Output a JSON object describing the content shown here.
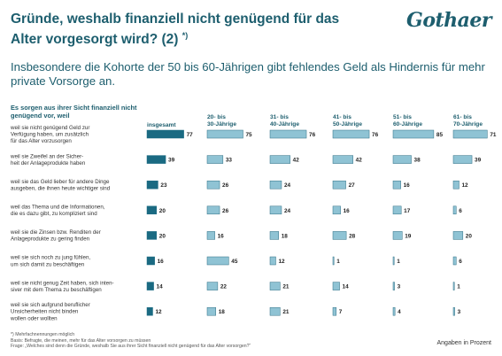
{
  "title": "Gründe, weshalb finanziell nicht genügend für das Alter vorgesorgt wird? (2) *)",
  "title_line1": "Gründe, weshalb finanziell nicht genügend für das",
  "title_line2": "Alter vorgesorgt wird? (2) ",
  "title_mark": "*)",
  "logo": "Gothaer",
  "subtitle": "Insbesondere die Kohorte der 50 bis 60-Jährigen gibt fehlendes Geld als Hindernis für mehr private Vorsorge an.",
  "question": "Es sorgen aus ihrer Sicht finanziell nicht genügend vor, weil",
  "footnotes": {
    "note": "*) Mehrfachnennungen möglich",
    "basis": "Basis:  Befragte, die meinen, mehr für das Alter vorsorgen zu müssen",
    "frage": "Frage:  „Welches sind denn die Gründe, weshalb Sie aus ihrer Sicht finanziell nicht genügend für das Alter vorsorgen?“"
  },
  "units": "Angaben in Prozent",
  "colors": {
    "title": "#1d5e6e",
    "total_bar": "#1a6a82",
    "group_bar": "#8fc3d4",
    "group_bar_stroke": "#2f6f84"
  },
  "chart_data": {
    "type": "bar",
    "orientation": "horizontal",
    "categories": [
      "weil sie nicht genügend Geld zur Verfügung haben, um zusätzlich für das Alter vorzusorgen",
      "weil sie Zweifel an der Sicherheit der Anlageprodukte haben",
      "weil sie das Geld lieber für andere Dinge ausgeben, die ihnen heute wichtiger sind",
      "weil das Thema und die Informationen, die es dazu gibt, zu kompliziert sind",
      "weil sie die Zinsen bzw. Renditen der Anlageprodukte zu gering finden",
      "weil sie sich noch zu jung fühlen, um sich damit zu beschäftigen",
      "weil sie nicht genug Zeit haben, sich intensiver mit dem Thema zu beschäftigen",
      "weil sie sich aufgrund beruflicher Unsicherheiten nicht binden wollen oder wollten"
    ],
    "category_lines": [
      [
        "weil sie nicht genügend Geld zur",
        "Verfügung haben, um zusätzlich",
        "für das Alter vorzusorgen"
      ],
      [
        "weil sie Zweifel an der Sicher-",
        "heit der Anlageprodukte haben"
      ],
      [
        "weil sie das Geld lieber für andere Dinge",
        "ausgeben, die ihnen heute wichtiger sind"
      ],
      [
        "weil das Thema und die Informationen,",
        "die es dazu gibt, zu kompliziert sind"
      ],
      [
        "weil sie die Zinsen bzw. Renditen der",
        "Anlageprodukte zu gering finden"
      ],
      [
        "weil sie sich noch zu jung fühlen,",
        "um sich damit zu beschäftigen"
      ],
      [
        "weil sie nicht genug Zeit haben, sich inten-",
        "siver mit dem Thema zu beschäftigen"
      ],
      [
        "weil sie sich aufgrund beruflicher",
        "Unsicherheiten nicht binden",
        "wollen oder wollten"
      ]
    ],
    "series": [
      {
        "name": "insgesamt",
        "header": [
          "insgesamt"
        ],
        "values": [
          77,
          39,
          23,
          20,
          20,
          16,
          14,
          12
        ]
      },
      {
        "name": "20- bis 30-Jährige",
        "header": [
          "20- bis",
          "30-Jährige"
        ],
        "values": [
          75,
          33,
          26,
          26,
          16,
          45,
          22,
          18
        ]
      },
      {
        "name": "31- bis 40-Jährige",
        "header": [
          "31- bis",
          "40-Jährige"
        ],
        "values": [
          76,
          42,
          24,
          24,
          18,
          12,
          21,
          21
        ]
      },
      {
        "name": "41- bis 50-Jährige",
        "header": [
          "41- bis",
          "50-Jährige"
        ],
        "values": [
          76,
          42,
          27,
          16,
          28,
          1,
          14,
          7
        ]
      },
      {
        "name": "51- bis 60-Jährige",
        "header": [
          "51- bis",
          "60-Jährige"
        ],
        "values": [
          85,
          38,
          16,
          17,
          19,
          1,
          3,
          4
        ]
      },
      {
        "name": "61- bis 70-Jährige",
        "header": [
          "61- bis",
          "70-Jährige"
        ],
        "values": [
          71,
          39,
          12,
          6,
          20,
          6,
          1,
          3
        ]
      }
    ],
    "xlim": [
      0,
      100
    ],
    "grid": false,
    "data_labels": true
  }
}
